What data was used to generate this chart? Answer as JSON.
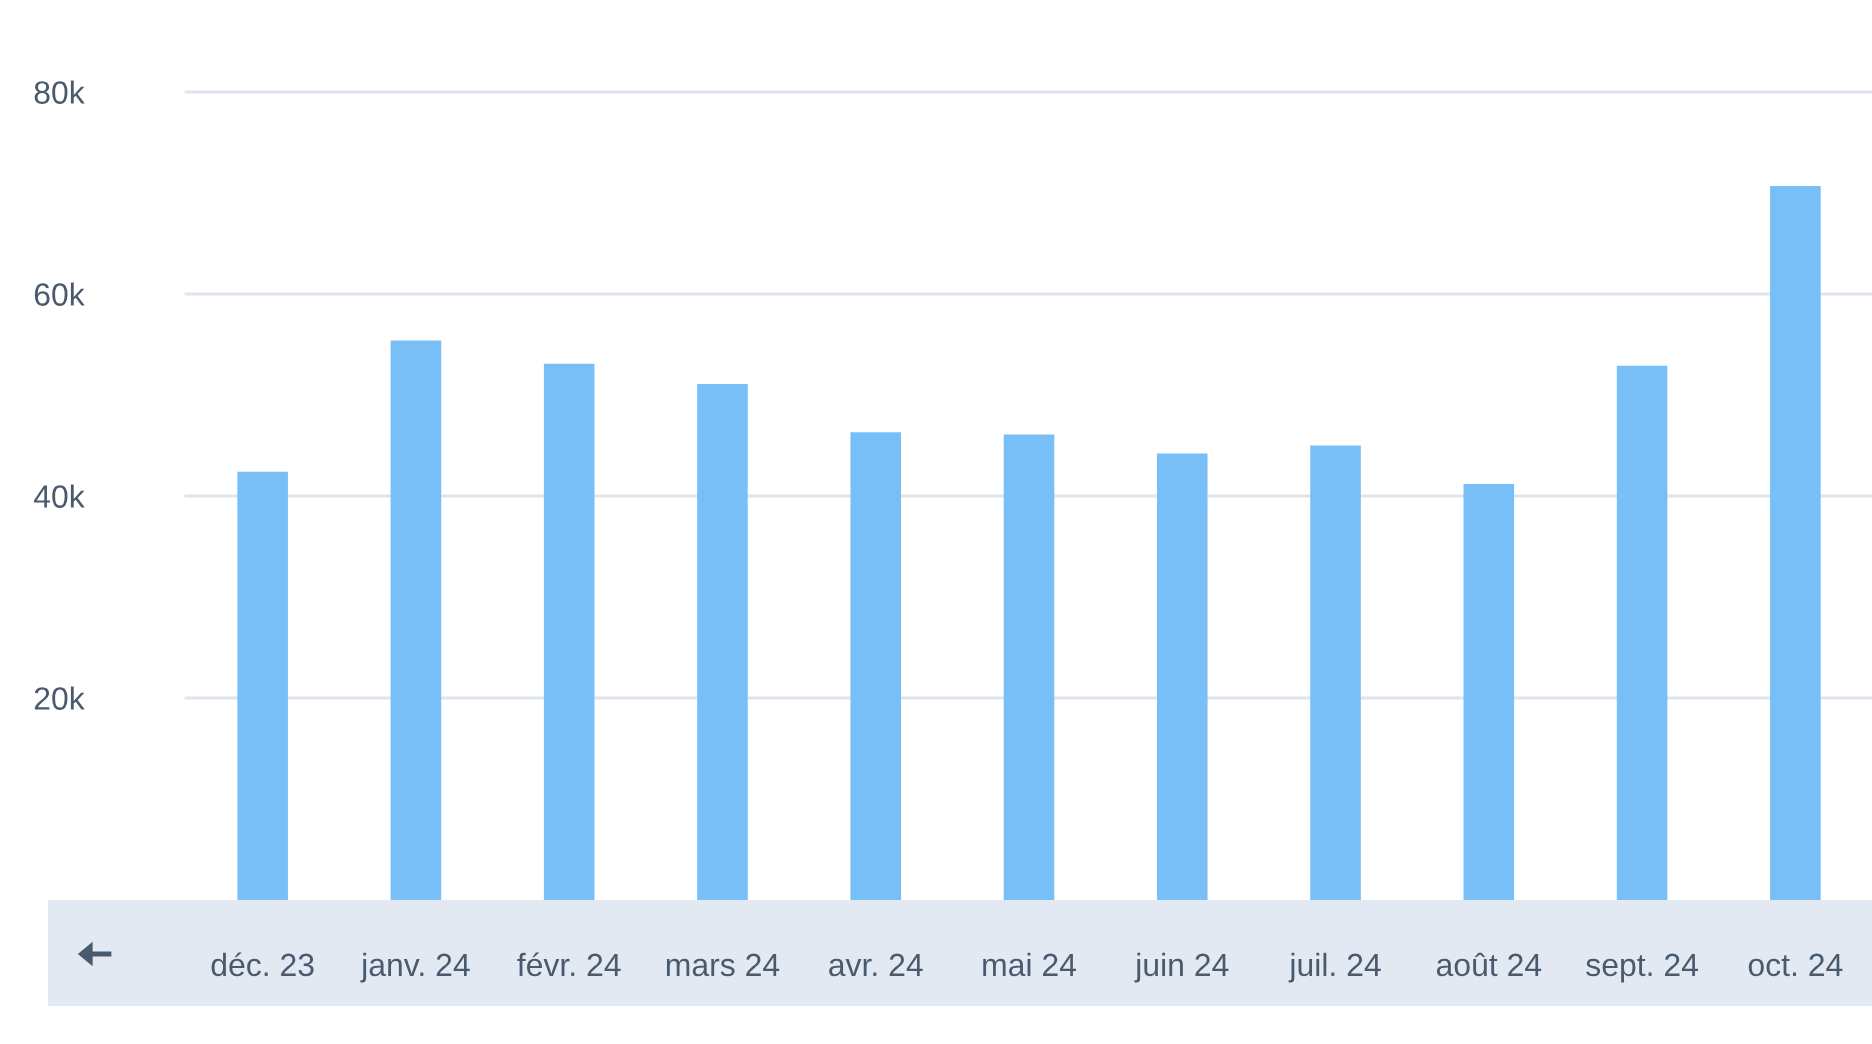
{
  "chart_data": {
    "type": "bar",
    "categories": [
      "déc. 23",
      "janv. 24",
      "févr. 24",
      "mars 24",
      "avr. 24",
      "mai 24",
      "juin 24",
      "juil. 24",
      "août 24",
      "sept. 24",
      "oct. 24"
    ],
    "values": [
      42.4,
      55.4,
      53.1,
      51.1,
      46.3,
      46.1,
      44.2,
      45.0,
      41.2,
      52.9,
      70.7
    ],
    "color": "#79bff7",
    "ylim": [
      0,
      80
    ],
    "yticks": [
      {
        "value": 20,
        "label": "20k"
      },
      {
        "value": 40,
        "label": "40k"
      },
      {
        "value": 60,
        "label": "60k"
      },
      {
        "value": 80,
        "label": "80k"
      }
    ],
    "grid": "y",
    "legend": false
  }
}
